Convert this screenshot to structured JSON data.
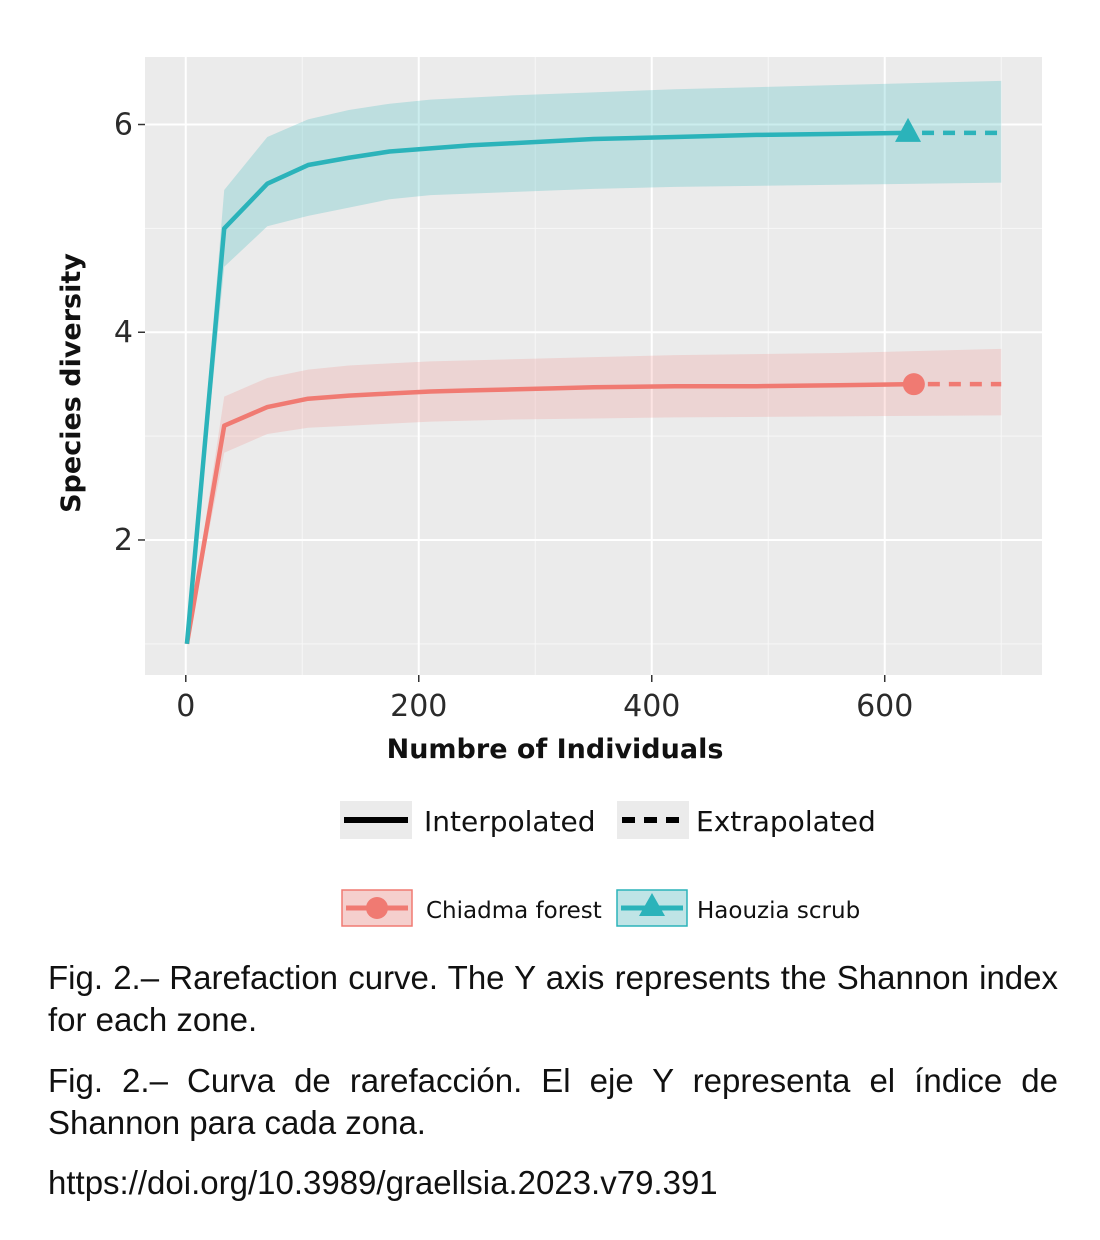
{
  "chart_data": {
    "type": "line",
    "xlabel": "Numbre of Individuals",
    "ylabel": "Species diversity",
    "xlim": [
      -35,
      735
    ],
    "ylim": [
      0.7,
      6.65
    ],
    "x_ticks": [
      0,
      200,
      400,
      600
    ],
    "y_ticks": [
      2,
      4,
      6
    ],
    "grid": true,
    "legend_position": "bottom",
    "line_type_legend": [
      {
        "label": "Interpolated",
        "style": "solid"
      },
      {
        "label": "Extrapolated",
        "style": "dashed"
      }
    ],
    "series": [
      {
        "name": "Chiadma forest",
        "color": "#F07A72",
        "marker": "circle",
        "interpolated": [
          [
            1,
            1
          ],
          [
            33,
            3.1
          ],
          [
            70,
            3.28
          ],
          [
            105,
            3.36
          ],
          [
            140,
            3.39
          ],
          [
            175,
            3.41
          ],
          [
            210,
            3.43
          ],
          [
            245,
            3.44
          ],
          [
            280,
            3.45
          ],
          [
            315,
            3.46
          ],
          [
            350,
            3.47
          ],
          [
            420,
            3.48
          ],
          [
            490,
            3.48
          ],
          [
            560,
            3.49
          ],
          [
            625,
            3.5
          ]
        ],
        "lower": [
          [
            1,
            1
          ],
          [
            33,
            2.84
          ],
          [
            70,
            3.02
          ],
          [
            105,
            3.08
          ],
          [
            140,
            3.1
          ],
          [
            175,
            3.12
          ],
          [
            210,
            3.14
          ],
          [
            280,
            3.16
          ],
          [
            350,
            3.17
          ],
          [
            420,
            3.18
          ],
          [
            560,
            3.19
          ],
          [
            700,
            3.2
          ]
        ],
        "upper": [
          [
            1,
            1
          ],
          [
            33,
            3.38
          ],
          [
            70,
            3.56
          ],
          [
            105,
            3.64
          ],
          [
            140,
            3.68
          ],
          [
            175,
            3.7
          ],
          [
            210,
            3.72
          ],
          [
            280,
            3.74
          ],
          [
            350,
            3.76
          ],
          [
            420,
            3.78
          ],
          [
            560,
            3.8
          ],
          [
            700,
            3.84
          ]
        ],
        "observed": [
          625,
          3.5
        ],
        "extrapolated": [
          [
            625,
            3.5
          ],
          [
            700,
            3.5
          ]
        ]
      },
      {
        "name": "Haouzia scrub",
        "color": "#2BB3BA",
        "marker": "triangle",
        "interpolated": [
          [
            1,
            1
          ],
          [
            33,
            5.0
          ],
          [
            70,
            5.43
          ],
          [
            105,
            5.61
          ],
          [
            140,
            5.68
          ],
          [
            175,
            5.74
          ],
          [
            210,
            5.77
          ],
          [
            245,
            5.8
          ],
          [
            280,
            5.82
          ],
          [
            315,
            5.84
          ],
          [
            350,
            5.86
          ],
          [
            420,
            5.88
          ],
          [
            490,
            5.9
          ],
          [
            560,
            5.91
          ],
          [
            620,
            5.92
          ]
        ],
        "lower": [
          [
            1,
            1
          ],
          [
            33,
            4.63
          ],
          [
            70,
            5.02
          ],
          [
            105,
            5.12
          ],
          [
            140,
            5.2
          ],
          [
            175,
            5.28
          ],
          [
            210,
            5.32
          ],
          [
            280,
            5.35
          ],
          [
            350,
            5.38
          ],
          [
            420,
            5.4
          ],
          [
            560,
            5.42
          ],
          [
            700,
            5.44
          ]
        ],
        "upper": [
          [
            1,
            1
          ],
          [
            33,
            5.37
          ],
          [
            70,
            5.88
          ],
          [
            105,
            6.05
          ],
          [
            140,
            6.14
          ],
          [
            175,
            6.2
          ],
          [
            210,
            6.24
          ],
          [
            280,
            6.28
          ],
          [
            350,
            6.31
          ],
          [
            420,
            6.34
          ],
          [
            560,
            6.38
          ],
          [
            700,
            6.42
          ]
        ],
        "observed": [
          620,
          5.92
        ],
        "extrapolated": [
          [
            620,
            5.92
          ],
          [
            700,
            5.92
          ]
        ]
      }
    ]
  },
  "captions": {
    "english": "Fig. 2.– Rarefaction curve. The Y axis represents the Shannon index for each zone.",
    "spanish": "Fig. 2.– Curva de rarefacción. El eje Y representa el índice de Shannon para cada zona.",
    "doi": "https://doi.org/10.3989/graellsia.2023.v79.391"
  }
}
